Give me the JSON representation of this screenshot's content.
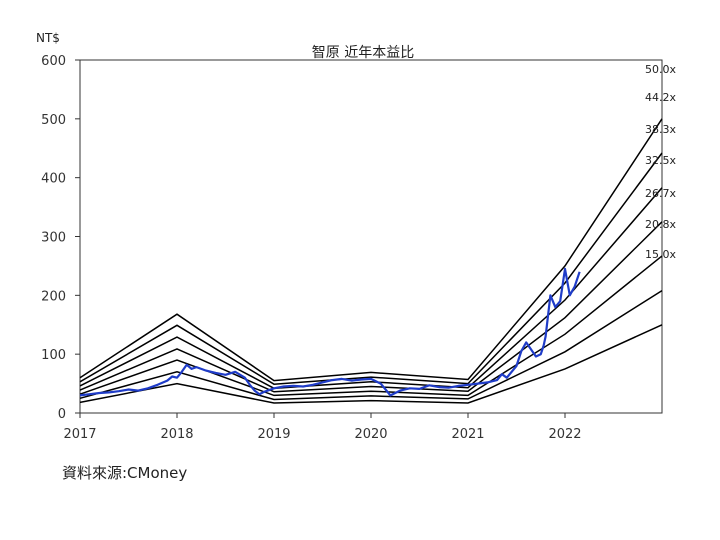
{
  "chart_data": {
    "type": "line",
    "title": "智原 近年本益比",
    "ylabel": "NT$",
    "xlabel": "",
    "ylim": [
      0,
      600
    ],
    "yticks": [
      0,
      100,
      200,
      300,
      400,
      500,
      600
    ],
    "xlim": [
      2017,
      2023
    ],
    "xticks": [
      "2017",
      "2018",
      "2019",
      "2020",
      "2021",
      "2022"
    ],
    "grid": false,
    "band_x": [
      2017,
      2018,
      2019,
      2020,
      2021,
      2022,
      2023
    ],
    "bands": [
      {
        "label": "50.0x",
        "values": [
          60,
          168,
          55,
          69,
          57,
          250,
          500
        ]
      },
      {
        "label": "44.2x",
        "values": [
          53,
          149,
          49,
          61,
          50,
          221,
          442
        ]
      },
      {
        "label": "38.3x",
        "values": [
          46,
          129,
          42,
          53,
          43,
          192,
          383
        ]
      },
      {
        "label": "32.5x",
        "values": [
          39,
          109,
          36,
          45,
          37,
          162,
          325
        ]
      },
      {
        "label": "26.7x",
        "values": [
          32,
          90,
          30,
          37,
          30,
          134,
          267
        ]
      },
      {
        "label": "20.8x",
        "values": [
          25,
          70,
          23,
          29,
          24,
          104,
          208
        ]
      },
      {
        "label": "15.0x",
        "values": [
          18,
          50,
          17,
          21,
          17,
          75,
          150
        ]
      }
    ],
    "series": [
      {
        "x": [
          2017.0,
          2017.1,
          2017.2,
          2017.3,
          2017.4,
          2017.5,
          2017.6,
          2017.7,
          2017.8,
          2017.9,
          2017.95,
          2018.0,
          2018.05,
          2018.1,
          2018.15,
          2018.2,
          2018.3,
          2018.4,
          2018.5,
          2018.6,
          2018.7,
          2018.75,
          2018.8,
          2018.85,
          2018.9,
          2019.0,
          2019.1,
          2019.2,
          2019.3,
          2019.4,
          2019.5,
          2019.6,
          2019.7,
          2019.8,
          2019.9,
          2020.0,
          2020.1,
          2020.15,
          2020.2,
          2020.3,
          2020.4,
          2020.5,
          2020.6,
          2020.7,
          2020.8,
          2020.9,
          2021.0,
          2021.1,
          2021.2,
          2021.3,
          2021.35,
          2021.4,
          2021.5,
          2021.55,
          2021.6,
          2021.65,
          2021.7,
          2021.75,
          2021.78,
          2021.8,
          2021.85,
          2021.9,
          2021.95,
          2022.0,
          2022.05,
          2022.1,
          2022.15
        ],
        "values": [
          30,
          32,
          34,
          35,
          37,
          40,
          38,
          42,
          48,
          55,
          62,
          60,
          70,
          82,
          75,
          78,
          72,
          68,
          65,
          70,
          60,
          48,
          38,
          32,
          36,
          42,
          45,
          46,
          45,
          48,
          52,
          56,
          58,
          55,
          57,
          58,
          50,
          40,
          30,
          38,
          42,
          41,
          47,
          44,
          43,
          46,
          48,
          50,
          52,
          56,
          66,
          60,
          80,
          105,
          120,
          108,
          96,
          100,
          115,
          130,
          200,
          180,
          190,
          245,
          200,
          215,
          240
        ]
      }
    ],
    "colors": {
      "price_line": "#1f3cc8",
      "band_line": "#000000"
    }
  },
  "source_label": "資料來源:CMoney"
}
